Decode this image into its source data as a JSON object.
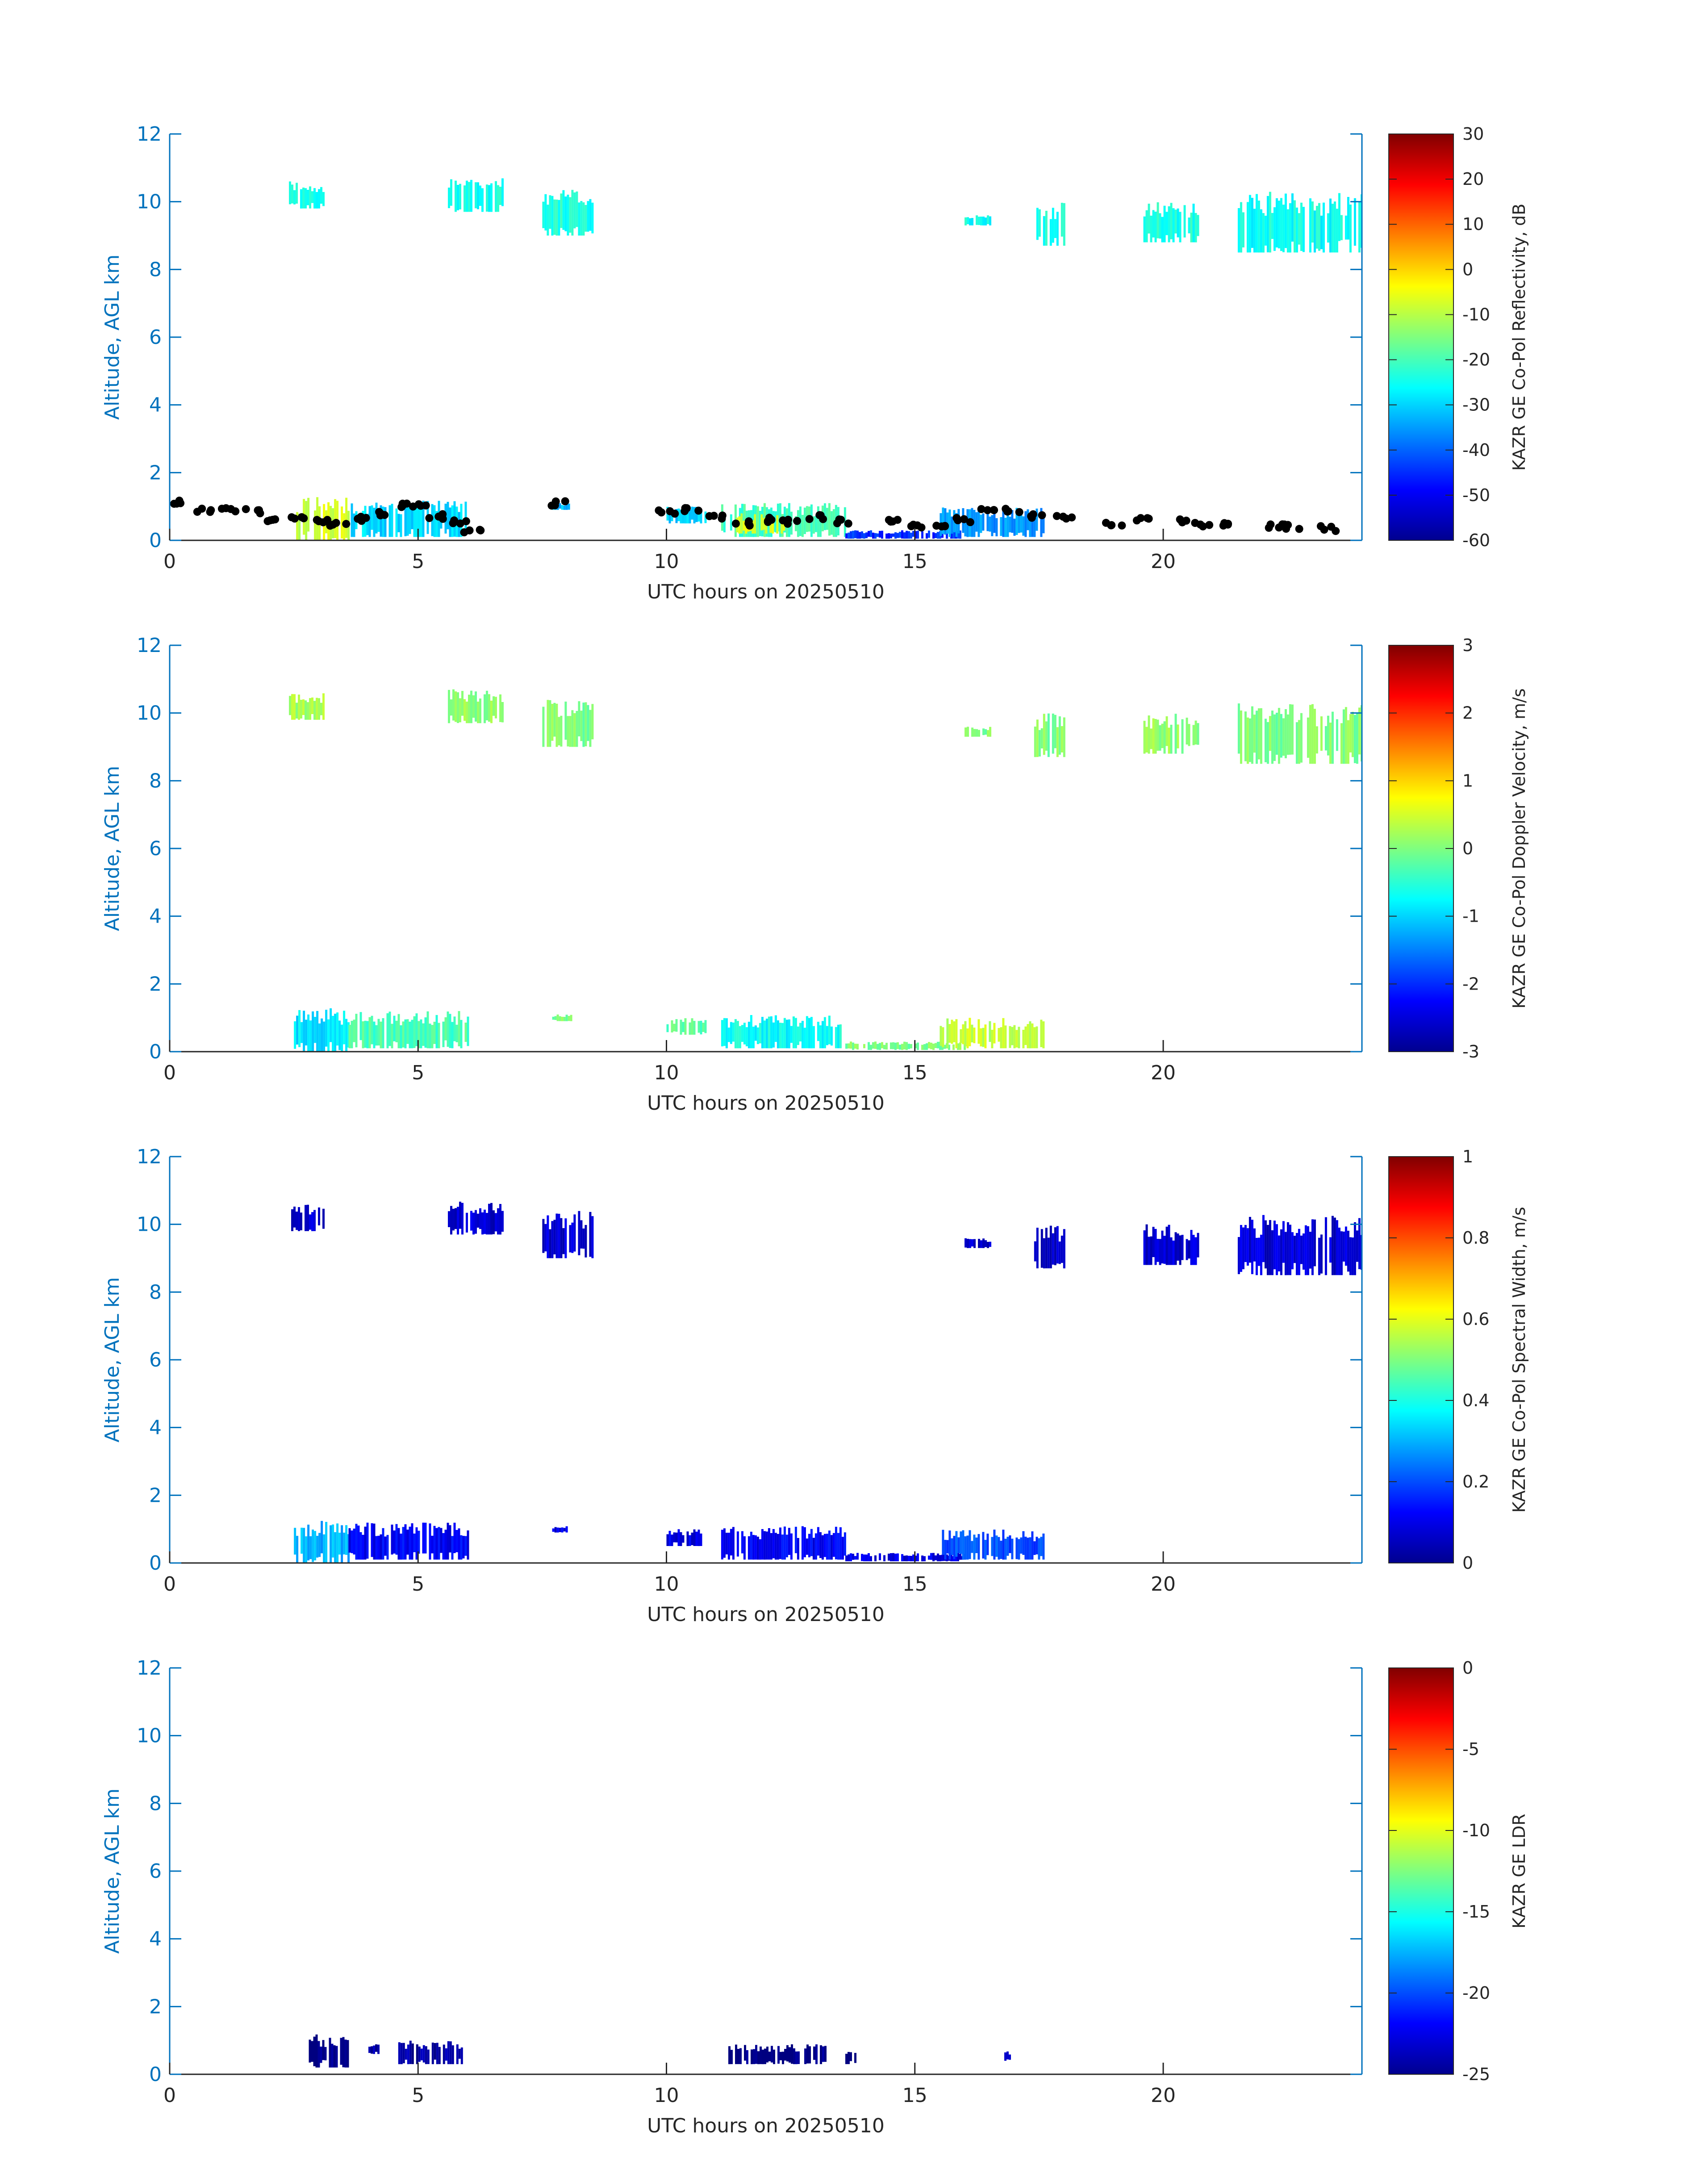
{
  "figure": {
    "xlabel": "UTC hours on 20250510",
    "ylabel": "Altitude, AGL km",
    "x_ticks": [
      "0",
      "5",
      "10",
      "15",
      "20"
    ],
    "y_ticks": [
      "0",
      "2",
      "4",
      "6",
      "8",
      "10",
      "12"
    ],
    "colormap": "jet",
    "axis_color": "#0072BD"
  },
  "chart_data": [
    {
      "type": "heatmap",
      "title": "",
      "xlabel": "UTC hours on 20250510",
      "ylabel": "Altitude, AGL km",
      "xlim": [
        0,
        24
      ],
      "ylim": [
        0,
        12
      ],
      "colorbar": {
        "label": "KAZR GE Co-Pol Reflectivity, dB",
        "range": [
          -60,
          30
        ],
        "ticks": [
          "30",
          "20",
          "10",
          "0",
          "-10",
          "-20",
          "-30",
          "-40",
          "-50",
          "-60"
        ]
      },
      "cloud_regions": [
        {
          "x0": 2.4,
          "x1": 3.1,
          "y0": 9.8,
          "y1": 10.6,
          "value": -25
        },
        {
          "x0": 5.6,
          "x1": 6.7,
          "y0": 9.7,
          "y1": 10.7,
          "value": -25
        },
        {
          "x0": 7.5,
          "x1": 8.5,
          "y0": 9.0,
          "y1": 10.4,
          "value": -24
        },
        {
          "x0": 16.0,
          "x1": 16.5,
          "y0": 9.3,
          "y1": 9.6,
          "value": -25
        },
        {
          "x0": 17.4,
          "x1": 18.0,
          "y0": 8.7,
          "y1": 10.0,
          "value": -24
        },
        {
          "x0": 19.6,
          "x1": 20.7,
          "y0": 8.8,
          "y1": 10.0,
          "value": -24
        },
        {
          "x0": 21.5,
          "x1": 24.0,
          "y0": 8.5,
          "y1": 10.3,
          "value": -25
        },
        {
          "x0": 2.5,
          "x1": 3.6,
          "y0": 0.0,
          "y1": 1.3,
          "value": -8
        },
        {
          "x0": 3.6,
          "x1": 6.0,
          "y0": 0.1,
          "y1": 1.2,
          "value": -30
        },
        {
          "x0": 7.7,
          "x1": 8.1,
          "y0": 0.9,
          "y1": 1.1,
          "value": -32
        },
        {
          "x0": 10.0,
          "x1": 10.8,
          "y0": 0.5,
          "y1": 1.0,
          "value": -30
        },
        {
          "x0": 11.1,
          "x1": 13.6,
          "y0": 0.1,
          "y1": 1.1,
          "value": -20
        },
        {
          "x0": 11.4,
          "x1": 12.4,
          "y0": 0.2,
          "y1": 0.8,
          "value": -6
        },
        {
          "x0": 13.6,
          "x1": 16.0,
          "y0": 0.05,
          "y1": 0.3,
          "value": -45
        },
        {
          "x0": 15.5,
          "x1": 17.6,
          "y0": 0.1,
          "y1": 1.0,
          "value": -35
        }
      ],
      "cloud_base_points": [
        [
          0.1,
          1.1
        ],
        [
          0.7,
          0.9
        ],
        [
          1.2,
          0.88
        ],
        [
          1.7,
          0.85
        ],
        [
          1.95,
          0.6
        ],
        [
          2.6,
          0.7
        ],
        [
          3.0,
          0.6
        ],
        [
          3.4,
          0.5
        ],
        [
          3.8,
          0.65
        ],
        [
          4.2,
          0.8
        ],
        [
          4.6,
          1.05
        ],
        [
          5.0,
          1.0
        ],
        [
          5.4,
          0.7
        ],
        [
          5.8,
          0.55
        ],
        [
          6.1,
          0.3
        ],
        [
          7.8,
          1.1
        ],
        [
          10.0,
          0.85
        ],
        [
          10.5,
          0.9
        ],
        [
          11.0,
          0.7
        ],
        [
          11.5,
          0.5
        ],
        [
          12.0,
          0.6
        ],
        [
          12.5,
          0.55
        ],
        [
          13.0,
          0.7
        ],
        [
          13.5,
          0.55
        ],
        [
          14.5,
          0.6
        ],
        [
          15.0,
          0.4
        ],
        [
          15.6,
          0.45
        ],
        [
          16.0,
          0.6
        ],
        [
          16.5,
          0.85
        ],
        [
          17.0,
          0.9
        ],
        [
          17.5,
          0.7
        ],
        [
          18.0,
          0.65
        ],
        [
          19.0,
          0.5
        ],
        [
          19.6,
          0.6
        ],
        [
          20.3,
          0.55
        ],
        [
          20.8,
          0.45
        ],
        [
          21.2,
          0.5
        ],
        [
          22.3,
          0.4
        ],
        [
          22.6,
          0.4
        ],
        [
          23.3,
          0.35
        ]
      ]
    },
    {
      "type": "heatmap",
      "title": "",
      "xlabel": "UTC hours on 20250510",
      "ylabel": "Altitude, AGL km",
      "xlim": [
        0,
        24
      ],
      "ylim": [
        0,
        12
      ],
      "colorbar": {
        "label": "KAZR GE Co-Pol Doppler Velocity, m/s",
        "range": [
          -3,
          3
        ],
        "ticks": [
          "3",
          "2",
          "1",
          "0",
          "-1",
          "-2",
          "-3"
        ]
      },
      "cloud_regions": [
        {
          "x0": 2.4,
          "x1": 3.1,
          "y0": 9.8,
          "y1": 10.6,
          "value": 0.2
        },
        {
          "x0": 5.6,
          "x1": 6.7,
          "y0": 9.7,
          "y1": 10.7,
          "value": 0.1
        },
        {
          "x0": 7.5,
          "x1": 8.5,
          "y0": 9.0,
          "y1": 10.4,
          "value": 0.0
        },
        {
          "x0": 16.0,
          "x1": 16.5,
          "y0": 9.3,
          "y1": 9.6,
          "value": 0.0
        },
        {
          "x0": 17.4,
          "x1": 18.0,
          "y0": 8.7,
          "y1": 10.0,
          "value": 0.0
        },
        {
          "x0": 19.6,
          "x1": 20.7,
          "y0": 8.8,
          "y1": 10.0,
          "value": 0.1
        },
        {
          "x0": 21.5,
          "x1": 24.0,
          "y0": 8.5,
          "y1": 10.3,
          "value": 0.0
        },
        {
          "x0": 2.5,
          "x1": 3.6,
          "y0": 0.0,
          "y1": 1.3,
          "value": -0.9
        },
        {
          "x0": 3.6,
          "x1": 6.0,
          "y0": 0.1,
          "y1": 1.2,
          "value": -0.3
        },
        {
          "x0": 7.7,
          "x1": 8.1,
          "y0": 0.9,
          "y1": 1.1,
          "value": 0.0
        },
        {
          "x0": 10.0,
          "x1": 10.8,
          "y0": 0.5,
          "y1": 1.0,
          "value": -0.2
        },
        {
          "x0": 11.1,
          "x1": 13.6,
          "y0": 0.1,
          "y1": 1.1,
          "value": -0.7
        },
        {
          "x0": 13.6,
          "x1": 16.0,
          "y0": 0.05,
          "y1": 0.3,
          "value": 0.0
        },
        {
          "x0": 15.5,
          "x1": 17.6,
          "y0": 0.1,
          "y1": 1.0,
          "value": 0.4
        }
      ]
    },
    {
      "type": "heatmap",
      "title": "",
      "xlabel": "UTC hours on 20250510",
      "ylabel": "Altitude, AGL km",
      "xlim": [
        0,
        24
      ],
      "ylim": [
        0,
        12
      ],
      "colorbar": {
        "label": "KAZR GE Co-Pol Spectral Width, m/s",
        "range": [
          0,
          1
        ],
        "ticks": [
          "1",
          "0.8",
          "0.6",
          "0.4",
          "0.2",
          "0"
        ]
      },
      "cloud_regions": [
        {
          "x0": 2.4,
          "x1": 3.1,
          "y0": 9.8,
          "y1": 10.6,
          "value": 0.08
        },
        {
          "x0": 5.6,
          "x1": 6.7,
          "y0": 9.7,
          "y1": 10.7,
          "value": 0.08
        },
        {
          "x0": 7.5,
          "x1": 8.5,
          "y0": 9.0,
          "y1": 10.4,
          "value": 0.08
        },
        {
          "x0": 16.0,
          "x1": 16.5,
          "y0": 9.3,
          "y1": 9.6,
          "value": 0.08
        },
        {
          "x0": 17.4,
          "x1": 18.0,
          "y0": 8.7,
          "y1": 10.0,
          "value": 0.08
        },
        {
          "x0": 19.6,
          "x1": 20.7,
          "y0": 8.8,
          "y1": 10.0,
          "value": 0.08
        },
        {
          "x0": 21.5,
          "x1": 24.0,
          "y0": 8.5,
          "y1": 10.3,
          "value": 0.08
        },
        {
          "x0": 2.5,
          "x1": 3.6,
          "y0": 0.0,
          "y1": 1.3,
          "value": 0.3
        },
        {
          "x0": 3.6,
          "x1": 6.0,
          "y0": 0.1,
          "y1": 1.2,
          "value": 0.12
        },
        {
          "x0": 7.7,
          "x1": 8.1,
          "y0": 0.9,
          "y1": 1.1,
          "value": 0.1
        },
        {
          "x0": 10.0,
          "x1": 10.8,
          "y0": 0.5,
          "y1": 1.0,
          "value": 0.1
        },
        {
          "x0": 11.1,
          "x1": 13.6,
          "y0": 0.1,
          "y1": 1.1,
          "value": 0.12
        },
        {
          "x0": 13.6,
          "x1": 16.0,
          "y0": 0.05,
          "y1": 0.3,
          "value": 0.1
        },
        {
          "x0": 15.5,
          "x1": 17.6,
          "y0": 0.1,
          "y1": 1.0,
          "value": 0.2
        }
      ]
    },
    {
      "type": "heatmap",
      "title": "",
      "xlabel": "UTC hours on 20250510",
      "ylabel": "Altitude, AGL km",
      "xlim": [
        0,
        24
      ],
      "ylim": [
        0,
        12
      ],
      "colorbar": {
        "label": "KAZR GE LDR",
        "range": [
          -25,
          0
        ],
        "ticks": [
          "0",
          "-5",
          "-10",
          "-15",
          "-20",
          "-25"
        ]
      },
      "cloud_regions": [
        {
          "x0": 2.8,
          "x1": 3.6,
          "y0": 0.2,
          "y1": 1.2,
          "value": -25
        },
        {
          "x0": 4.0,
          "x1": 4.2,
          "y0": 0.6,
          "y1": 0.9,
          "value": -24
        },
        {
          "x0": 4.6,
          "x1": 6.0,
          "y0": 0.3,
          "y1": 1.0,
          "value": -24
        },
        {
          "x0": 11.2,
          "x1": 13.2,
          "y0": 0.3,
          "y1": 0.9,
          "value": -25
        },
        {
          "x0": 13.6,
          "x1": 13.8,
          "y0": 0.3,
          "y1": 0.8,
          "value": -25
        },
        {
          "x0": 16.8,
          "x1": 16.9,
          "y0": 0.4,
          "y1": 0.7,
          "value": -24
        }
      ]
    }
  ]
}
